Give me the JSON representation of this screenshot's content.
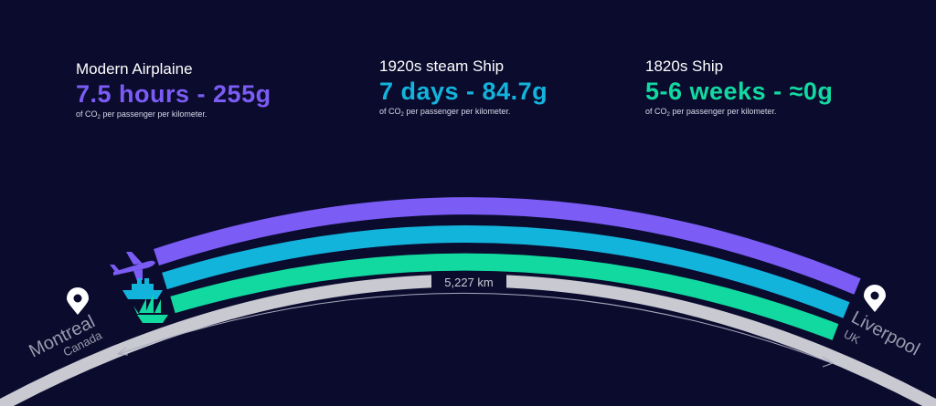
{
  "colors": {
    "background": "#0b0b2e",
    "airplane": "#7b5cf5",
    "steamship": "#13b4dc",
    "sailship": "#12d9a0",
    "earth": "#c9c9d2"
  },
  "stats": [
    {
      "name": "Modern Airplaine",
      "value": "7.5 hours - 255g",
      "caption_pre": "of CO",
      "caption_sub": "2",
      "caption_post": " per passenger per kilometer.",
      "color": "#7b5cf5",
      "icon": "airplane-icon"
    },
    {
      "name": "1920s steam Ship",
      "value": "7 days - 84.7g",
      "caption_pre": "of CO",
      "caption_sub": "2",
      "caption_post": " per passenger per kilometer.",
      "color": "#13b4dc",
      "icon": "steamship-icon"
    },
    {
      "name": "1820s Ship",
      "value": "5-6 weeks - ≈0g",
      "caption_pre": "of CO",
      "caption_sub": "2",
      "caption_post": " per passenger per kilometer.",
      "color": "#12d9a0",
      "icon": "sailship-icon"
    }
  ],
  "distance": "5,227 km",
  "origin": {
    "city": "Montreal",
    "country": "Canada",
    "icon": "location-pin-icon"
  },
  "destination": {
    "city": "Liverpool",
    "country": "UK",
    "icon": "location-pin-icon"
  }
}
